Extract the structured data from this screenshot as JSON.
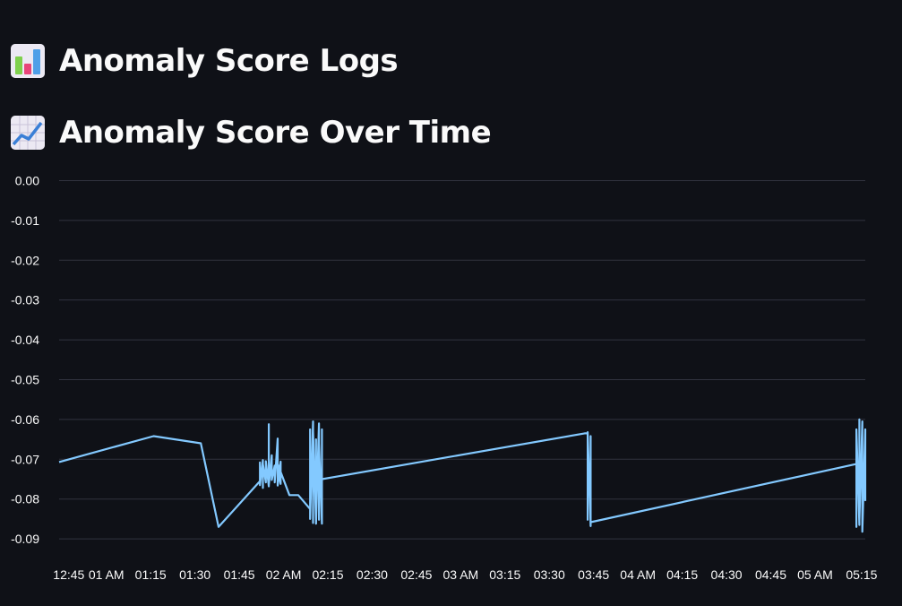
{
  "headings": [
    {
      "icon": "bar-chart-emoji-icon",
      "text": "Anomaly Score Logs"
    },
    {
      "icon": "chart-increasing-emoji-icon",
      "text": "Anomaly Score Over Time"
    }
  ],
  "colors": {
    "background": "#0f1117",
    "line": "#83c9ff",
    "grid": "#31333f",
    "text": "#fafafa"
  },
  "chart_data": {
    "type": "line",
    "title": "",
    "xlabel": "",
    "ylabel": "",
    "grid": true,
    "ylim": [
      -0.092,
      0.001
    ],
    "yticks": [
      "0.00",
      "-0.01",
      "-0.02",
      "-0.03",
      "-0.04",
      "-0.05",
      "-0.06",
      "-0.07",
      "-0.08",
      "-0.09"
    ],
    "ytick_values": [
      0,
      -0.01,
      -0.02,
      -0.03,
      -0.04,
      -0.05,
      -0.06,
      -0.07,
      -0.08,
      -0.09
    ],
    "xlim": [
      "12:44",
      "05:17"
    ],
    "xticks": [
      "12:45",
      "01 AM",
      "01:15",
      "01:30",
      "01:45",
      "02 AM",
      "02:15",
      "02:30",
      "02:45",
      "03 AM",
      "03:15",
      "03:30",
      "03:45",
      "04 AM",
      "04:15",
      "04:30",
      "04:45",
      "05 AM",
      "05:15"
    ],
    "xtick_times": [
      "12:45",
      "01:00",
      "01:15",
      "01:30",
      "01:45",
      "02:00",
      "02:15",
      "02:30",
      "02:45",
      "03:00",
      "03:15",
      "03:30",
      "03:45",
      "04:00",
      "04:15",
      "04:30",
      "04:45",
      "05:00",
      "05:15"
    ],
    "series": [
      {
        "points": [
          [
            "12:44",
            -0.0707
          ],
          [
            "01:16",
            -0.0642
          ],
          [
            "01:32",
            -0.066
          ],
          [
            "01:38",
            -0.087
          ],
          [
            "01:52",
            -0.0755
          ],
          [
            "01:52",
            -0.0708
          ],
          [
            "01:52",
            -0.0765
          ],
          [
            "01:53",
            -0.0702
          ],
          [
            "01:53",
            -0.0772
          ],
          [
            "01:53",
            -0.0712
          ],
          [
            "01:54",
            -0.0758
          ],
          [
            "01:54",
            -0.0705
          ],
          [
            "01:55",
            -0.0768
          ],
          [
            "01:55",
            -0.0612
          ],
          [
            "01:55",
            -0.0765
          ],
          [
            "01:56",
            -0.069
          ],
          [
            "01:56",
            -0.0752
          ],
          [
            "01:57",
            -0.0716
          ],
          [
            "01:57",
            -0.0758
          ],
          [
            "01:58",
            -0.0648
          ],
          [
            "01:58",
            -0.0766
          ],
          [
            "01:59",
            -0.0706
          ],
          [
            "01:59",
            -0.0762
          ],
          [
            "01:58",
            -0.0712
          ],
          [
            "02:02",
            -0.079
          ],
          [
            "02:05",
            -0.079
          ],
          [
            "02:09",
            -0.0825
          ],
          [
            "02:09",
            -0.0625
          ],
          [
            "02:09",
            -0.085
          ],
          [
            "02:10",
            -0.0605
          ],
          [
            "02:10",
            -0.086
          ],
          [
            "02:10",
            -0.063
          ],
          [
            "02:11",
            -0.0855
          ],
          [
            "02:11",
            -0.065
          ],
          [
            "02:11",
            -0.0862
          ],
          [
            "02:12",
            -0.061
          ],
          [
            "02:12",
            -0.0852
          ],
          [
            "02:12",
            -0.066
          ],
          [
            "02:13",
            -0.0862
          ],
          [
            "02:13",
            -0.0625
          ],
          [
            "02:13",
            -0.0845
          ],
          [
            "02:13",
            -0.075
          ],
          [
            "03:42",
            -0.0635
          ],
          [
            "03:43",
            -0.0635
          ],
          [
            "03:43",
            -0.0852
          ],
          [
            "03:43",
            -0.0632
          ],
          [
            "03:44",
            -0.0868
          ],
          [
            "03:44",
            -0.0642
          ],
          [
            "03:44",
            -0.0858
          ],
          [
            "05:14",
            -0.0712
          ],
          [
            "05:14",
            -0.087
          ],
          [
            "05:14",
            -0.0625
          ],
          [
            "05:15",
            -0.0865
          ],
          [
            "05:15",
            -0.06
          ],
          [
            "05:15",
            -0.0855
          ],
          [
            "05:16",
            -0.0605
          ],
          [
            "05:16",
            -0.0852
          ],
          [
            "05:16",
            -0.063
          ],
          [
            "05:16",
            -0.0882
          ],
          [
            "05:17",
            -0.0625
          ],
          [
            "05:17",
            -0.0805
          ]
        ]
      }
    ]
  }
}
